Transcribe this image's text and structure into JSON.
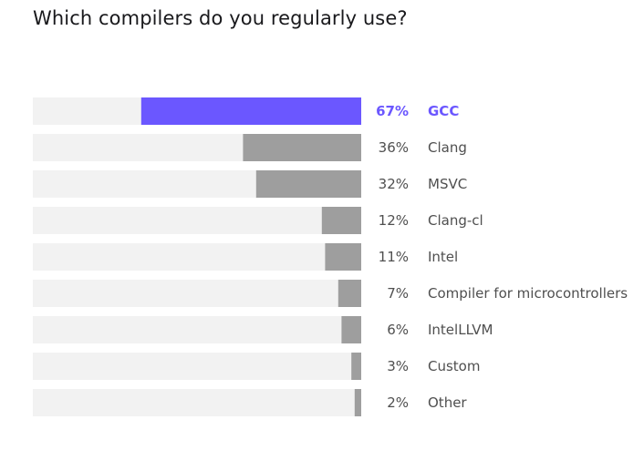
{
  "chart_data": {
    "type": "bar",
    "orientation": "horizontal",
    "title": "Which compilers do you regularly use?",
    "categories": [
      "GCC",
      "Clang",
      "MSVC",
      "Clang-cl",
      "Intel",
      "Compiler for microcontrollers",
      "IntelLLVM",
      "Custom",
      "Other"
    ],
    "values": [
      67,
      36,
      32,
      12,
      11,
      7,
      6,
      3,
      2
    ],
    "value_labels": [
      "67%",
      "36%",
      "32%",
      "12%",
      "11%",
      "7%",
      "6%",
      "3%",
      "2%"
    ],
    "unit": "%",
    "xlim": [
      0,
      100
    ],
    "highlight_index": 0,
    "grid": false,
    "legend": "none",
    "colors": {
      "highlight": "#6b57ff",
      "bar": "#9e9e9e",
      "track": "#f2f2f2",
      "text": "#4f4f4f",
      "title": "#19191c"
    }
  }
}
